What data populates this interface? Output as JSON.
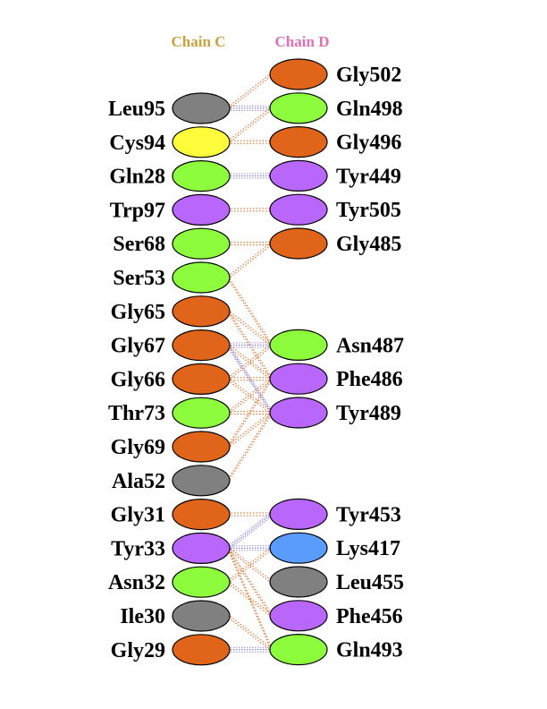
{
  "chains": {
    "left": {
      "name": "Chain C",
      "color": "#c8a23c"
    },
    "right": {
      "name": "Chain D",
      "color": "#e26fb4"
    }
  },
  "colors": {
    "orange": "#e0651a",
    "green": "#8cfc3c",
    "purple": "#b966fb",
    "gray": "#808080",
    "yellow": "#fdfd3c",
    "blue": "#5a9cfc"
  },
  "left_residues": [
    {
      "label": "Leu95",
      "color": "gray"
    },
    {
      "label": "Cys94",
      "color": "yellow"
    },
    {
      "label": "Gln28",
      "color": "green"
    },
    {
      "label": "Trp97",
      "color": "purple"
    },
    {
      "label": "Ser68",
      "color": "green"
    },
    {
      "label": "Ser53",
      "color": "green"
    },
    {
      "label": "Gly65",
      "color": "orange"
    },
    {
      "label": "Gly67",
      "color": "orange"
    },
    {
      "label": "Gly66",
      "color": "orange"
    },
    {
      "label": "Thr73",
      "color": "green"
    },
    {
      "label": "Gly69",
      "color": "orange"
    },
    {
      "label": "Ala52",
      "color": "gray"
    },
    {
      "label": "Gly31",
      "color": "orange"
    },
    {
      "label": "Tyr33",
      "color": "purple"
    },
    {
      "label": "Asn32",
      "color": "green"
    },
    {
      "label": "Ile30",
      "color": "gray"
    },
    {
      "label": "Gly29",
      "color": "orange"
    }
  ],
  "right_residues": [
    {
      "label": "Gly502",
      "color": "orange"
    },
    {
      "label": "Gln498",
      "color": "green"
    },
    {
      "label": "Gly496",
      "color": "orange"
    },
    {
      "label": "Tyr449",
      "color": "purple"
    },
    {
      "label": "Tyr505",
      "color": "purple"
    },
    {
      "label": "Gly485",
      "color": "orange"
    },
    {
      "label": "Asn487",
      "color": "green"
    },
    {
      "label": "Phe486",
      "color": "purple"
    },
    {
      "label": "Tyr489",
      "color": "purple"
    },
    {
      "label": "Tyr453",
      "color": "purple"
    },
    {
      "label": "Lys417",
      "color": "blue"
    },
    {
      "label": "Leu455",
      "color": "gray"
    },
    {
      "label": "Phe456",
      "color": "purple"
    },
    {
      "label": "Gln493",
      "color": "green"
    }
  ],
  "interactions": [
    {
      "from": "Leu95",
      "to": "Gly502",
      "type": "nonbonded"
    },
    {
      "from": "Leu95",
      "to": "Gln498",
      "type": "hbond"
    },
    {
      "from": "Cys94",
      "to": "Gln498",
      "type": "nonbonded"
    },
    {
      "from": "Cys94",
      "to": "Gly496",
      "type": "nonbonded"
    },
    {
      "from": "Gln28",
      "to": "Tyr449",
      "type": "hbond"
    },
    {
      "from": "Trp97",
      "to": "Tyr505",
      "type": "nonbonded"
    },
    {
      "from": "Ser68",
      "to": "Gly485",
      "type": "nonbonded"
    },
    {
      "from": "Ser53",
      "to": "Gly485",
      "type": "nonbonded"
    },
    {
      "from": "Ser53",
      "to": "Asn487",
      "type": "nonbonded"
    },
    {
      "from": "Gly65",
      "to": "Asn487",
      "type": "nonbonded"
    },
    {
      "from": "Gly65",
      "to": "Phe486",
      "type": "nonbonded"
    },
    {
      "from": "Gly67",
      "to": "Asn487",
      "type": "hbond"
    },
    {
      "from": "Gly67",
      "to": "Phe486",
      "type": "nonbonded"
    },
    {
      "from": "Gly67",
      "to": "Tyr489",
      "type": "hbond"
    },
    {
      "from": "Gly66",
      "to": "Asn487",
      "type": "nonbonded"
    },
    {
      "from": "Gly66",
      "to": "Phe486",
      "type": "nonbonded"
    },
    {
      "from": "Gly66",
      "to": "Tyr489",
      "type": "nonbonded"
    },
    {
      "from": "Thr73",
      "to": "Phe486",
      "type": "nonbonded"
    },
    {
      "from": "Thr73",
      "to": "Tyr489",
      "type": "nonbonded"
    },
    {
      "from": "Gly69",
      "to": "Tyr489",
      "type": "nonbonded"
    },
    {
      "from": "Gly69",
      "to": "Phe486",
      "type": "nonbonded"
    },
    {
      "from": "Ala52",
      "to": "Tyr489",
      "type": "nonbonded"
    },
    {
      "from": "Gly31",
      "to": "Tyr453",
      "type": "nonbonded"
    },
    {
      "from": "Tyr33",
      "to": "Tyr453",
      "type": "hbond"
    },
    {
      "from": "Tyr33",
      "to": "Lys417",
      "type": "hbond"
    },
    {
      "from": "Tyr33",
      "to": "Leu455",
      "type": "nonbonded"
    },
    {
      "from": "Tyr33",
      "to": "Phe456",
      "type": "nonbonded"
    },
    {
      "from": "Tyr33",
      "to": "Gln493",
      "type": "nonbonded"
    },
    {
      "from": "Asn32",
      "to": "Lys417",
      "type": "nonbonded"
    },
    {
      "from": "Asn32",
      "to": "Phe456",
      "type": "nonbonded"
    },
    {
      "from": "Ile30",
      "to": "Gln493",
      "type": "nonbonded"
    },
    {
      "from": "Gly29",
      "to": "Gln493",
      "type": "hbond"
    }
  ]
}
